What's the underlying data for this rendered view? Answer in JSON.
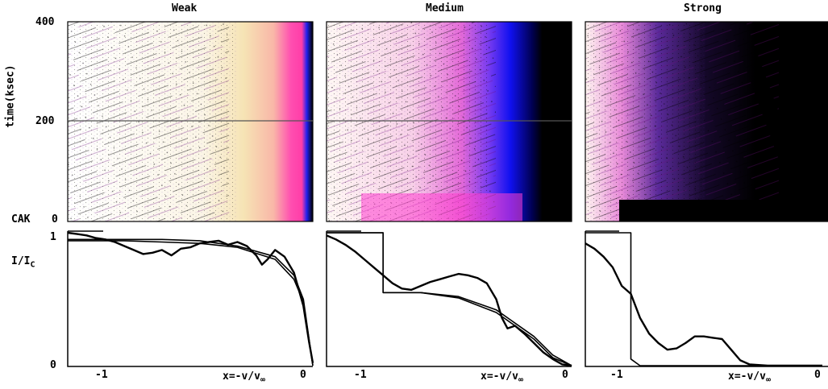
{
  "chart_data": [
    {
      "type": "heatmap",
      "title": "Weak",
      "ylabel": "time(ksec)",
      "yticks": [
        "400",
        "200",
        "0"
      ],
      "extra_labels": [
        "CAK"
      ],
      "ylim": [
        0,
        400
      ],
      "xlim": [
        -1.3,
        0
      ],
      "colormap": [
        "#fffff4",
        "#f6e6b2",
        "#ff4fb0",
        "#2020ff",
        "#000000"
      ]
    },
    {
      "type": "heatmap",
      "title": "Medium",
      "ylim": [
        0,
        400
      ],
      "xlim": [
        -1.3,
        0
      ]
    },
    {
      "type": "heatmap",
      "title": "Strong",
      "ylim": [
        0,
        400
      ],
      "xlim": [
        -1.3,
        0
      ]
    },
    {
      "type": "line",
      "ylabel": "I/I",
      "ylabel_sub": "C",
      "yticks": [
        "1",
        "0"
      ],
      "xticks": [
        "-1",
        "0"
      ],
      "xlabel": "x=-v/v",
      "xlabel_sub": "∞",
      "xlim": [
        -1.3,
        0
      ],
      "ylim": [
        0,
        1
      ],
      "series": [
        {
          "x": [
            -1.3,
            -1.0,
            -0.8,
            -0.6,
            -0.4,
            -0.2,
            -0.1,
            -0.05,
            0
          ],
          "y": [
            0.95,
            0.95,
            0.95,
            0.94,
            0.9,
            0.82,
            0.68,
            0.5,
            0.0
          ]
        },
        {
          "x": [
            -1.3,
            -1.0,
            -0.8,
            -0.6,
            -0.4,
            -0.2,
            -0.1,
            -0.05,
            0
          ],
          "y": [
            0.94,
            0.94,
            0.93,
            0.92,
            0.89,
            0.8,
            0.65,
            0.48,
            0.0
          ]
        },
        {
          "x": [
            -1.3,
            -1.25,
            -1.2,
            -1.15,
            -1.1,
            -1.05,
            -1.0,
            -0.95,
            -0.9,
            -0.85,
            -0.8,
            -0.75,
            -0.7,
            -0.65,
            -0.6,
            -0.55,
            -0.5,
            -0.45,
            -0.4,
            -0.35,
            -0.3,
            -0.27,
            -0.24,
            -0.2,
            -0.15,
            -0.1,
            -0.05,
            -0.02,
            0
          ],
          "y": [
            1.0,
            0.99,
            0.98,
            0.96,
            0.95,
            0.93,
            0.9,
            0.87,
            0.84,
            0.85,
            0.87,
            0.83,
            0.88,
            0.89,
            0.92,
            0.93,
            0.94,
            0.91,
            0.93,
            0.9,
            0.83,
            0.76,
            0.8,
            0.87,
            0.82,
            0.7,
            0.45,
            0.18,
            0.02
          ]
        }
      ]
    },
    {
      "type": "line",
      "xticks": [
        "-1",
        "0"
      ],
      "xlabel": "x=-v/v",
      "xlabel_sub": "∞",
      "xlim": [
        -1.3,
        0
      ],
      "ylim": [
        0,
        1
      ],
      "series": [
        {
          "x": [
            -1.3,
            -1.0,
            -1.0,
            -0.8,
            -0.6,
            -0.4,
            -0.2,
            -0.1,
            0
          ],
          "y": [
            1.0,
            1.0,
            0.55,
            0.55,
            0.52,
            0.42,
            0.22,
            0.08,
            0.0
          ]
        },
        {
          "x": [
            -1.3,
            -1.0,
            -1.0,
            -0.8,
            -0.6,
            -0.4,
            -0.2,
            -0.1,
            0
          ],
          "y": [
            1.0,
            1.0,
            0.55,
            0.55,
            0.51,
            0.4,
            0.2,
            0.06,
            0.0
          ]
        },
        {
          "x": [
            -1.3,
            -1.25,
            -1.2,
            -1.15,
            -1.1,
            -1.05,
            -1.0,
            -0.95,
            -0.9,
            -0.85,
            -0.8,
            -0.75,
            -0.7,
            -0.65,
            -0.6,
            -0.55,
            -0.5,
            -0.45,
            -0.4,
            -0.37,
            -0.34,
            -0.3,
            -0.25,
            -0.2,
            -0.15,
            -0.1,
            -0.05,
            0
          ],
          "y": [
            0.98,
            0.95,
            0.91,
            0.86,
            0.8,
            0.74,
            0.68,
            0.62,
            0.58,
            0.57,
            0.6,
            0.63,
            0.65,
            0.67,
            0.69,
            0.68,
            0.66,
            0.62,
            0.5,
            0.36,
            0.28,
            0.3,
            0.24,
            0.17,
            0.1,
            0.05,
            0.01,
            0.0
          ]
        }
      ]
    },
    {
      "type": "line",
      "xticks": [
        "-1",
        "0"
      ],
      "xlabel": "x=-v/v",
      "xlabel_sub": "∞",
      "xlim": [
        -1.3,
        0
      ],
      "ylim": [
        0,
        1
      ],
      "series": [
        {
          "x": [
            -1.3,
            -1.05,
            -1.05,
            -1.0,
            -0.5,
            0
          ],
          "y": [
            1.0,
            1.0,
            0.05,
            0.0,
            0.0,
            0.0
          ]
        },
        {
          "x": [
            -1.3,
            -1.25,
            -1.2,
            -1.15,
            -1.1,
            -1.05,
            -1.0,
            -0.95,
            -0.9,
            -0.85,
            -0.8,
            -0.75,
            -0.7,
            -0.65,
            -0.6,
            -0.55,
            -0.5,
            -0.45,
            -0.4,
            -0.3,
            -0.2,
            0
          ],
          "y": [
            0.92,
            0.88,
            0.82,
            0.74,
            0.6,
            0.54,
            0.36,
            0.24,
            0.17,
            0.12,
            0.13,
            0.17,
            0.22,
            0.22,
            0.21,
            0.2,
            0.12,
            0.04,
            0.01,
            0.0,
            0.0,
            0.0
          ]
        }
      ]
    }
  ],
  "colors": {
    "line": "#000000",
    "heat_light": "#fffff4",
    "heat_cream": "#f6e6b2",
    "heat_pink": "#ff4fb0",
    "heat_blue": "#2020ff",
    "heat_black": "#000000"
  }
}
